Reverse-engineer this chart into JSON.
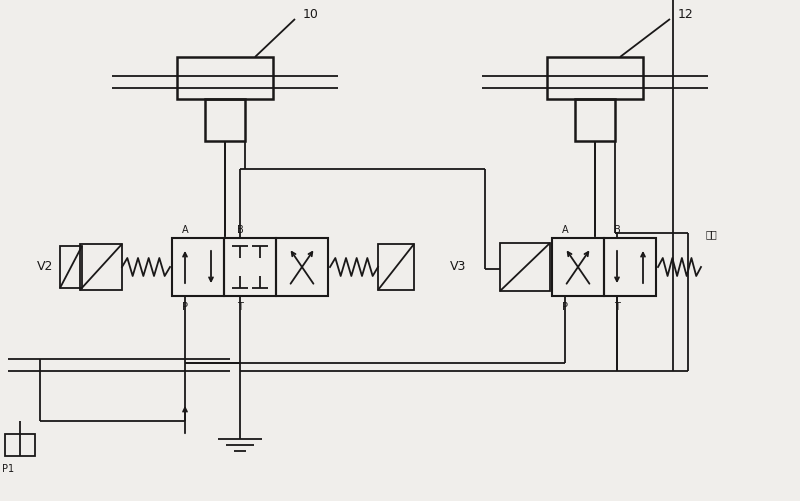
{
  "bg": "#f0eeeb",
  "lc": "#1a1818",
  "lw": 1.3,
  "fig_w": 8.0,
  "fig_h": 5.02,
  "label_10": "10",
  "label_12": "12",
  "label_V2": "V2",
  "label_V3": "V3",
  "label_sync": "同步",
  "label_pump": "P1"
}
